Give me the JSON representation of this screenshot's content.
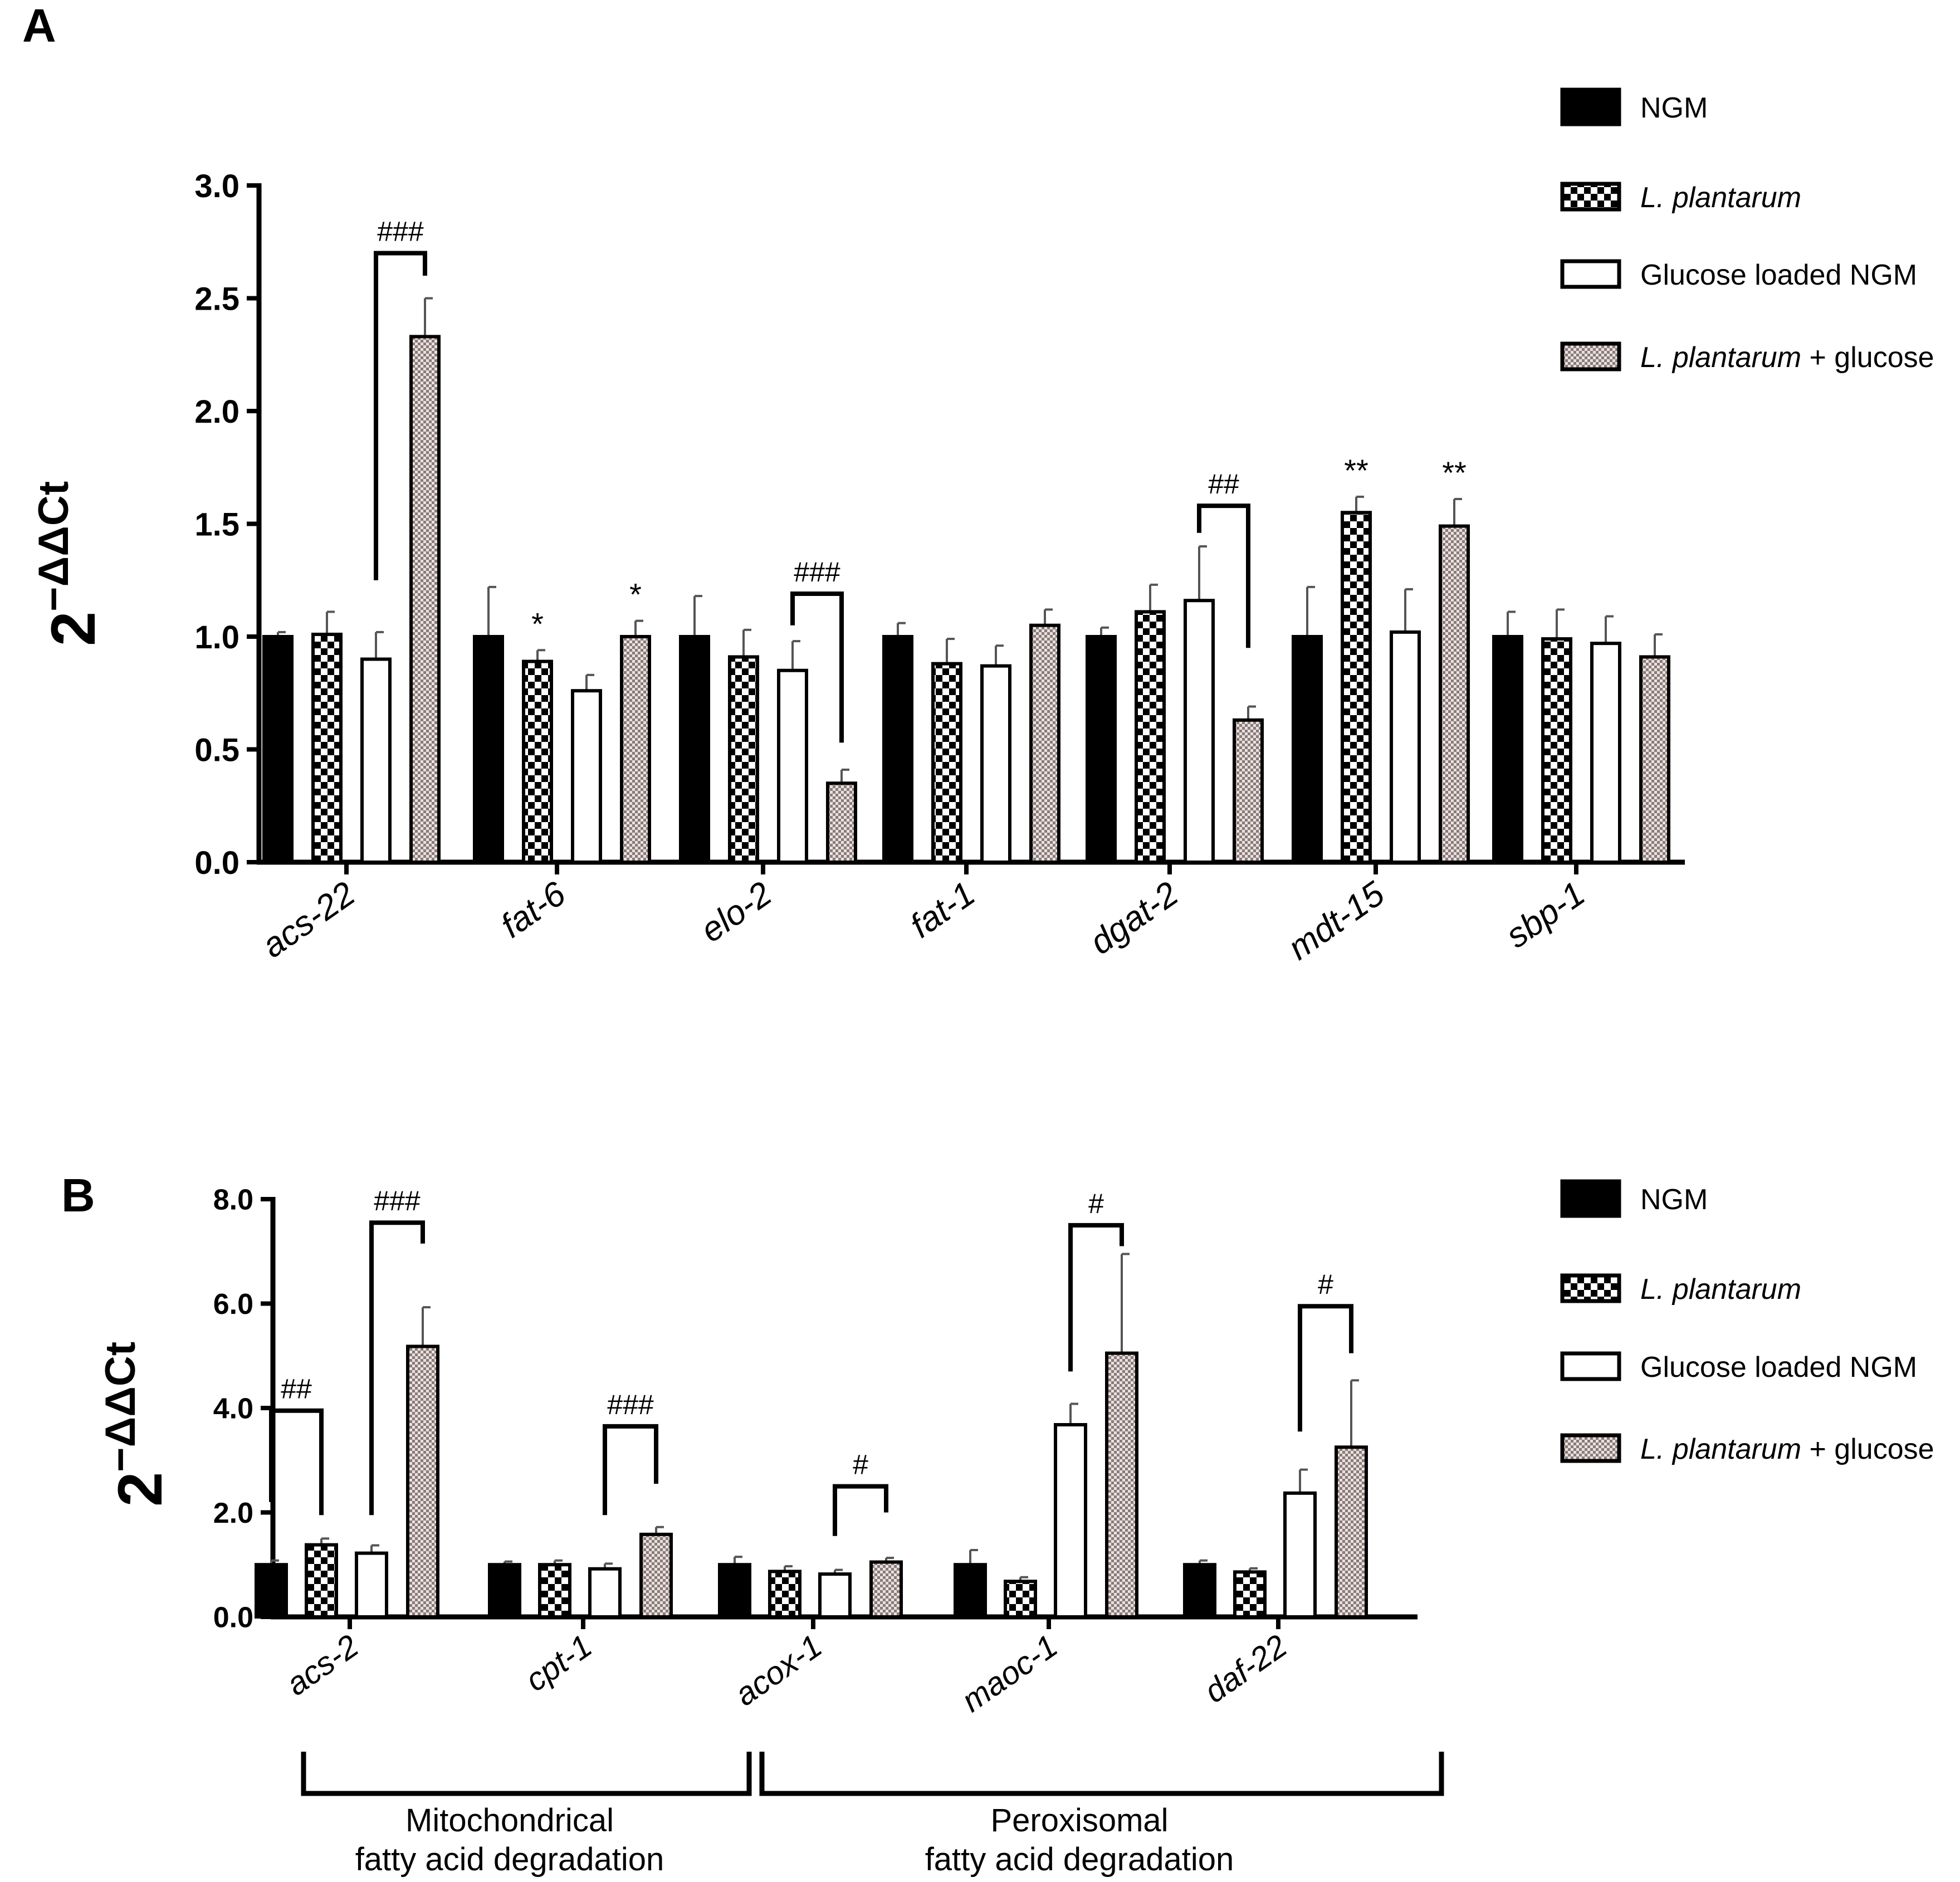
{
  "panel_labels": [
    "A",
    "B"
  ],
  "colors": {
    "ink": "#000000",
    "paper": "#ffffff",
    "hatch": "#7a6a68"
  },
  "legend": [
    {
      "label": "NGM",
      "italic_part": "",
      "pattern": "solid"
    },
    {
      "label": "L. plantarum",
      "italic_part": "L. plantarum",
      "pattern": "checker"
    },
    {
      "label": "Glucose loaded NGM",
      "italic_part": "",
      "pattern": "open"
    },
    {
      "label": " + glucose",
      "italic_part": "L. plantarum",
      "pattern": "hatch"
    }
  ],
  "chart_data": [
    {
      "type": "bar",
      "panel": "A",
      "ylabel": "2",
      "ylabel_superscript": "−ΔΔCt",
      "ylim": [
        0,
        3.0
      ],
      "yticks": [
        "0.0",
        "0.5",
        "1.0",
        "1.5",
        "2.0",
        "2.5",
        "3.0"
      ],
      "categories": [
        "acs-22",
        "fat-6",
        "elo-2",
        "fat-1",
        "dgat-2",
        "mdt-15",
        "sbp-1"
      ],
      "series": [
        {
          "name": "NGM",
          "values": [
            1.0,
            1.0,
            1.0,
            1.0,
            1.0,
            1.0,
            1.0
          ],
          "errors": [
            0.02,
            0.22,
            0.18,
            0.06,
            0.04,
            0.22,
            0.11
          ]
        },
        {
          "name": "L. plantarum",
          "values": [
            1.01,
            0.89,
            0.91,
            0.88,
            1.11,
            1.55,
            0.99
          ],
          "errors": [
            0.1,
            0.05,
            0.12,
            0.11,
            0.12,
            0.07,
            0.13
          ]
        },
        {
          "name": "Glucose loaded NGM",
          "values": [
            0.9,
            0.76,
            0.85,
            0.87,
            1.16,
            1.02,
            0.97
          ],
          "errors": [
            0.12,
            0.07,
            0.13,
            0.09,
            0.24,
            0.19,
            0.12
          ]
        },
        {
          "name": "L. plantarum + glucose",
          "values": [
            2.33,
            1.0,
            0.35,
            1.05,
            0.63,
            1.49,
            0.91
          ],
          "errors": [
            0.17,
            0.07,
            0.06,
            0.07,
            0.06,
            0.12,
            0.1
          ]
        }
      ],
      "annotations": [
        {
          "text": "*",
          "category": 1,
          "series": 1
        },
        {
          "text": "*",
          "category": 1,
          "series": 3
        },
        {
          "text": "**",
          "category": 5,
          "series": 1
        },
        {
          "text": "**",
          "category": 5,
          "series": 3
        }
      ],
      "brackets": [
        {
          "text": "###",
          "category": 0,
          "from": 2,
          "to": 3,
          "top": 2.7,
          "left_end": 1.25,
          "right_end": 2.6
        },
        {
          "text": "###",
          "category": 2,
          "from": 2,
          "to": 3,
          "top": 1.19,
          "left_end": 1.05,
          "right_end": 0.53
        },
        {
          "text": "##",
          "category": 4,
          "from": 2,
          "to": 3,
          "top": 1.58,
          "left_end": 1.46,
          "right_end": 0.95
        }
      ]
    },
    {
      "type": "bar",
      "panel": "B",
      "ylabel": "2",
      "ylabel_superscript": "−ΔΔCt",
      "ylim": [
        0,
        8.0
      ],
      "yticks": [
        "0.0",
        "2.0",
        "4.0",
        "6.0",
        "8.0"
      ],
      "categories": [
        "acs-2",
        "cpt-1",
        "acox-1",
        "maoc-1",
        "daf-22"
      ],
      "series": [
        {
          "name": "NGM",
          "values": [
            1.0,
            1.0,
            1.0,
            1.0,
            1.0
          ],
          "errors": [
            0.08,
            0.06,
            0.15,
            0.28,
            0.08
          ]
        },
        {
          "name": "L. plantarum",
          "values": [
            1.38,
            1.0,
            0.87,
            0.68,
            0.86
          ],
          "errors": [
            0.12,
            0.08,
            0.1,
            0.08,
            0.07
          ]
        },
        {
          "name": "Glucose loaded NGM",
          "values": [
            1.22,
            0.92,
            0.82,
            3.68,
            2.37
          ],
          "errors": [
            0.15,
            0.1,
            0.08,
            0.4,
            0.45
          ]
        },
        {
          "name": "L. plantarum + glucose",
          "values": [
            5.18,
            1.58,
            1.05,
            5.05,
            3.25
          ],
          "errors": [
            0.75,
            0.14,
            0.08,
            1.9,
            1.28
          ]
        }
      ],
      "brackets": [
        {
          "text": "##",
          "category": 0,
          "from": 0,
          "to": 1,
          "top": 3.95,
          "left_end": 2.2,
          "right_end": 1.95
        },
        {
          "text": "###",
          "category": 0,
          "from": 2,
          "to": 3,
          "top": 7.55,
          "left_end": 1.95,
          "right_end": 7.15
        },
        {
          "text": "###",
          "category": 1,
          "from": 2,
          "to": 3,
          "top": 3.65,
          "left_end": 1.95,
          "right_end": 2.55
        },
        {
          "text": "#",
          "category": 2,
          "from": 2,
          "to": 3,
          "top": 2.5,
          "left_end": 1.55,
          "right_end": 2.0
        },
        {
          "text": "#",
          "category": 3,
          "from": 2,
          "to": 3,
          "top": 7.5,
          "left_end": 4.7,
          "right_end": 7.1
        },
        {
          "text": "#",
          "category": 4,
          "from": 2,
          "to": 3,
          "top": 5.95,
          "left_end": 3.55,
          "right_end": 5.05
        }
      ],
      "groups": [
        {
          "line1": "Mitochondrical",
          "line2": "fatty acid degradation"
        },
        {
          "line1": "Peroxisomal",
          "line2": "fatty acid degradation"
        }
      ]
    }
  ]
}
